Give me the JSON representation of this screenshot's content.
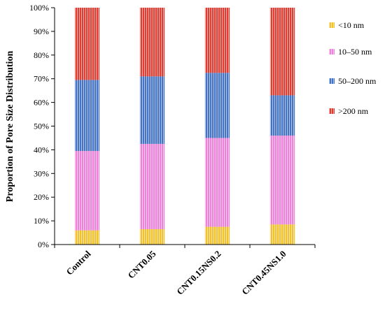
{
  "chart_data": {
    "type": "bar",
    "stacked": true,
    "categories": [
      "Control",
      "CNT0.05",
      "CNT0.15NS0.2",
      "CNT0.45NS1.0"
    ],
    "series": [
      {
        "name": "<10 nm",
        "color": "#f2c12e",
        "values": [
          6,
          6.5,
          7.5,
          8.5
        ]
      },
      {
        "name": "10–50 nm",
        "color": "#ee82d9",
        "values": [
          33.5,
          36,
          37.5,
          37.5
        ]
      },
      {
        "name": "50–200 nm",
        "color": "#4472c4",
        "values": [
          30,
          28.5,
          27.5,
          17
        ]
      },
      {
        "name": ">200 nm",
        "color": "#e03c31",
        "values": [
          30.5,
          29,
          27.5,
          37
        ]
      }
    ],
    "ylabel": "Proportion of Pore Size Distribution",
    "xlabel": "",
    "ylim": [
      0,
      100
    ],
    "yticks": [
      "0%",
      "10%",
      "20%",
      "30%",
      "40%",
      "50%",
      "60%",
      "70%",
      "80%",
      "90%",
      "100%"
    ],
    "legend_position": "right",
    "grid": false
  }
}
